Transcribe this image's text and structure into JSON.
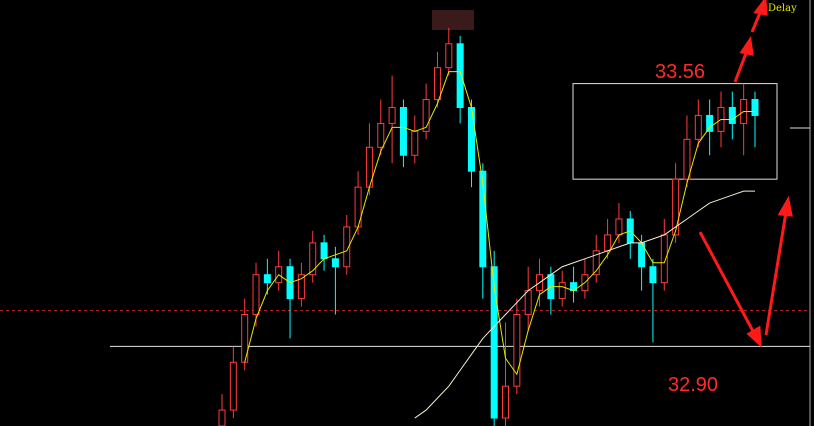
{
  "chart_data": {
    "type": "candlestick",
    "status": "Delay",
    "annotations": [
      "33.56",
      "32.90"
    ],
    "ylim": [
      32.7,
      33.77
    ],
    "hline": 32.9,
    "ref_line": 32.99,
    "box": {
      "high": 33.56,
      "low": 33.32
    },
    "up_color": "#ff3b3b",
    "down_color": "#00ffff",
    "open": [
      32.7,
      32.74,
      32.86,
      32.98,
      33.08,
      33.06,
      33.1,
      33.02,
      33.08,
      33.16,
      33.12,
      33.1,
      33.2,
      33.3,
      33.4,
      33.46,
      33.5,
      33.38,
      33.44,
      33.52,
      33.6,
      33.66,
      33.5,
      33.34,
      33.1,
      32.72,
      32.8,
      32.98,
      33.04,
      33.08,
      33.02,
      33.06,
      33.04,
      33.08,
      33.14,
      33.18,
      33.22,
      33.16,
      33.1,
      33.06,
      33.18,
      33.32,
      33.42,
      33.48,
      33.44,
      33.5,
      33.46,
      33.52
    ],
    "high": [
      32.78,
      32.9,
      33.02,
      33.11,
      33.12,
      33.14,
      33.12,
      33.11,
      33.19,
      33.18,
      33.15,
      33.23,
      33.34,
      33.46,
      33.52,
      33.58,
      33.52,
      33.48,
      33.56,
      33.64,
      33.7,
      33.68,
      33.52,
      33.36,
      33.14,
      32.96,
      33.02,
      33.1,
      33.12,
      33.1,
      33.09,
      33.1,
      33.12,
      33.18,
      33.22,
      33.26,
      33.24,
      33.18,
      33.12,
      33.22,
      33.36,
      33.48,
      33.52,
      33.52,
      33.54,
      33.54,
      33.56,
      33.54
    ],
    "low": [
      32.69,
      32.72,
      32.84,
      32.95,
      33.03,
      33.04,
      32.92,
      33.0,
      33.06,
      33.09,
      32.98,
      33.08,
      33.18,
      33.28,
      33.38,
      33.36,
      33.35,
      33.36,
      33.42,
      33.5,
      33.58,
      33.46,
      33.3,
      33.02,
      32.7,
      32.7,
      32.78,
      32.94,
      33.0,
      32.98,
      33.0,
      33.01,
      33.02,
      33.06,
      33.12,
      33.16,
      33.12,
      33.04,
      32.91,
      33.04,
      33.16,
      33.3,
      33.4,
      33.38,
      33.4,
      33.42,
      33.38,
      33.4
    ],
    "close": [
      32.74,
      32.86,
      32.98,
      33.08,
      33.06,
      33.1,
      33.02,
      33.08,
      33.16,
      33.12,
      33.1,
      33.2,
      33.3,
      33.4,
      33.46,
      33.5,
      33.38,
      33.44,
      33.52,
      33.6,
      33.66,
      33.5,
      33.34,
      33.1,
      32.72,
      32.8,
      32.98,
      33.04,
      33.08,
      33.02,
      33.06,
      33.04,
      33.08,
      33.14,
      33.18,
      33.22,
      33.16,
      33.1,
      33.06,
      33.18,
      33.32,
      33.42,
      33.48,
      33.44,
      33.5,
      33.46,
      33.52,
      33.48
    ],
    "series": [
      {
        "color": "#e8e800",
        "values": [
          null,
          null,
          32.86,
          32.97,
          33.04,
          33.08,
          33.06,
          33.07,
          33.09,
          33.12,
          33.13,
          33.14,
          33.2,
          33.3,
          33.39,
          33.45,
          33.45,
          33.44,
          33.45,
          33.51,
          33.59,
          33.59,
          33.5,
          33.31,
          33.05,
          32.87,
          32.83,
          32.94,
          33.03,
          33.05,
          33.05,
          33.04,
          33.06,
          33.09,
          33.13,
          33.18,
          33.19,
          33.16,
          33.11,
          33.11,
          33.19,
          33.31,
          33.41,
          33.45,
          33.47,
          33.47,
          33.49,
          33.49
        ]
      },
      {
        "color": "#f0f0d0",
        "values": [
          null,
          null,
          null,
          null,
          null,
          null,
          null,
          null,
          null,
          null,
          null,
          null,
          null,
          null,
          null,
          null,
          null,
          32.72,
          32.74,
          32.77,
          32.8,
          32.84,
          32.88,
          32.92,
          32.95,
          32.98,
          33.01,
          33.04,
          33.06,
          33.08,
          33.1,
          33.11,
          33.12,
          33.13,
          33.14,
          33.15,
          33.16,
          33.16,
          33.17,
          33.18,
          33.2,
          33.22,
          33.24,
          33.26,
          33.27,
          33.28,
          33.29,
          33.29
        ]
      }
    ]
  }
}
